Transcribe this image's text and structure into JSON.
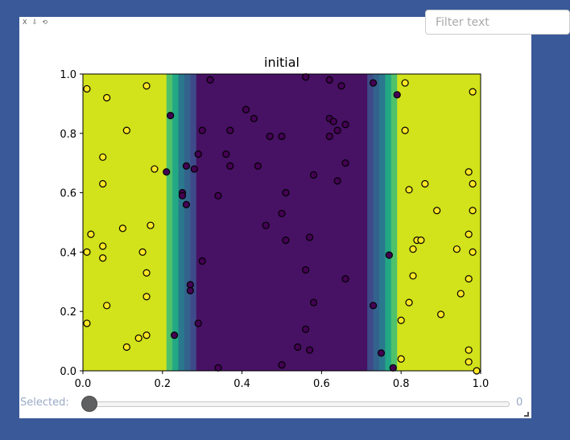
{
  "toolbar": {
    "items": [
      {
        "name": "close-icon",
        "glyph": "X"
      },
      {
        "name": "download-icon",
        "glyph": "⇩"
      },
      {
        "name": "reset-icon",
        "glyph": "⟲"
      }
    ]
  },
  "filter": {
    "placeholder": "Filter text",
    "value": ""
  },
  "slider": {
    "label": "Selected:",
    "value": "0",
    "fraction": 0
  },
  "colors": {
    "background": "#3a5998",
    "yellow": "#d2e21b",
    "dark_purple": "#471164",
    "point_yellow": "#fde725",
    "point_purple": "#440154",
    "point_edge": "#000000"
  },
  "chart_data": {
    "type": "scatter",
    "title": "initial",
    "xlabel": "",
    "ylabel": "",
    "xlim": [
      0,
      1
    ],
    "ylim": [
      0,
      1
    ],
    "x_ticks": [
      "0.0",
      "0.2",
      "0.4",
      "0.6",
      "0.8",
      "1.0"
    ],
    "y_ticks": [
      "0.0",
      "0.2",
      "0.4",
      "0.6",
      "0.8",
      "1.0"
    ],
    "grid": false,
    "background_bands": [
      {
        "x0": 0.0,
        "x1": 0.21,
        "color": "#d2e21b"
      },
      {
        "x0": 0.21,
        "x1": 0.225,
        "color": "#4fc16b"
      },
      {
        "x0": 0.225,
        "x1": 0.24,
        "color": "#22a884"
      },
      {
        "x0": 0.24,
        "x1": 0.255,
        "color": "#2a788e"
      },
      {
        "x0": 0.255,
        "x1": 0.27,
        "color": "#33638d"
      },
      {
        "x0": 0.27,
        "x1": 0.285,
        "color": "#3e4a89"
      },
      {
        "x0": 0.285,
        "x1": 0.715,
        "color": "#471164"
      },
      {
        "x0": 0.715,
        "x1": 0.73,
        "color": "#3e4a89"
      },
      {
        "x0": 0.73,
        "x1": 0.745,
        "color": "#33638d"
      },
      {
        "x0": 0.745,
        "x1": 0.76,
        "color": "#2a788e"
      },
      {
        "x0": 0.76,
        "x1": 0.775,
        "color": "#22a884"
      },
      {
        "x0": 0.775,
        "x1": 0.79,
        "color": "#4fc16b"
      },
      {
        "x0": 0.79,
        "x1": 1.0,
        "color": "#d2e21b"
      }
    ],
    "series": [
      {
        "class": "yellow",
        "points": [
          [
            0.01,
            0.95
          ],
          [
            0.06,
            0.92
          ],
          [
            0.16,
            0.96
          ],
          [
            0.11,
            0.81
          ],
          [
            0.05,
            0.72
          ],
          [
            0.18,
            0.68
          ],
          [
            0.05,
            0.63
          ],
          [
            0.02,
            0.46
          ],
          [
            0.1,
            0.48
          ],
          [
            0.17,
            0.49
          ],
          [
            0.05,
            0.42
          ],
          [
            0.01,
            0.4
          ],
          [
            0.05,
            0.38
          ],
          [
            0.15,
            0.4
          ],
          [
            0.16,
            0.33
          ],
          [
            0.16,
            0.25
          ],
          [
            0.06,
            0.22
          ],
          [
            0.01,
            0.16
          ],
          [
            0.16,
            0.12
          ],
          [
            0.14,
            0.11
          ],
          [
            0.11,
            0.08
          ],
          [
            0.81,
            0.97
          ],
          [
            0.98,
            0.94
          ],
          [
            0.81,
            0.81
          ],
          [
            0.97,
            0.67
          ],
          [
            0.98,
            0.63
          ],
          [
            0.86,
            0.63
          ],
          [
            0.82,
            0.61
          ],
          [
            0.89,
            0.54
          ],
          [
            0.98,
            0.54
          ],
          [
            0.97,
            0.46
          ],
          [
            0.84,
            0.44
          ],
          [
            0.85,
            0.44
          ],
          [
            0.83,
            0.41
          ],
          [
            0.94,
            0.41
          ],
          [
            0.98,
            0.4
          ],
          [
            0.83,
            0.32
          ],
          [
            0.97,
            0.31
          ],
          [
            0.95,
            0.26
          ],
          [
            0.82,
            0.23
          ],
          [
            0.9,
            0.19
          ],
          [
            0.8,
            0.17
          ],
          [
            0.97,
            0.07
          ],
          [
            0.8,
            0.04
          ],
          [
            0.97,
            0.03
          ],
          [
            0.99,
            0.0
          ]
        ]
      },
      {
        "class": "purple",
        "points": [
          [
            0.32,
            0.98
          ],
          [
            0.56,
            0.99
          ],
          [
            0.62,
            0.98
          ],
          [
            0.65,
            0.96
          ],
          [
            0.73,
            0.97
          ],
          [
            0.79,
            0.93
          ],
          [
            0.41,
            0.88
          ],
          [
            0.22,
            0.86
          ],
          [
            0.43,
            0.85
          ],
          [
            0.62,
            0.85
          ],
          [
            0.63,
            0.84
          ],
          [
            0.66,
            0.83
          ],
          [
            0.3,
            0.81
          ],
          [
            0.37,
            0.81
          ],
          [
            0.64,
            0.81
          ],
          [
            0.47,
            0.79
          ],
          [
            0.5,
            0.79
          ],
          [
            0.62,
            0.79
          ],
          [
            0.29,
            0.73
          ],
          [
            0.36,
            0.73
          ],
          [
            0.66,
            0.7
          ],
          [
            0.37,
            0.69
          ],
          [
            0.44,
            0.69
          ],
          [
            0.26,
            0.69
          ],
          [
            0.28,
            0.68
          ],
          [
            0.21,
            0.67
          ],
          [
            0.58,
            0.66
          ],
          [
            0.64,
            0.64
          ],
          [
            0.51,
            0.6
          ],
          [
            0.25,
            0.6
          ],
          [
            0.25,
            0.59
          ],
          [
            0.34,
            0.59
          ],
          [
            0.26,
            0.56
          ],
          [
            0.5,
            0.53
          ],
          [
            0.46,
            0.49
          ],
          [
            0.57,
            0.45
          ],
          [
            0.51,
            0.44
          ],
          [
            0.77,
            0.39
          ],
          [
            0.3,
            0.37
          ],
          [
            0.56,
            0.34
          ],
          [
            0.66,
            0.31
          ],
          [
            0.27,
            0.29
          ],
          [
            0.27,
            0.27
          ],
          [
            0.58,
            0.23
          ],
          [
            0.73,
            0.22
          ],
          [
            0.29,
            0.16
          ],
          [
            0.56,
            0.14
          ],
          [
            0.23,
            0.12
          ],
          [
            0.54,
            0.08
          ],
          [
            0.57,
            0.07
          ],
          [
            0.75,
            0.06
          ],
          [
            0.5,
            0.02
          ],
          [
            0.34,
            0.01
          ],
          [
            0.78,
            0.01
          ]
        ]
      }
    ]
  }
}
